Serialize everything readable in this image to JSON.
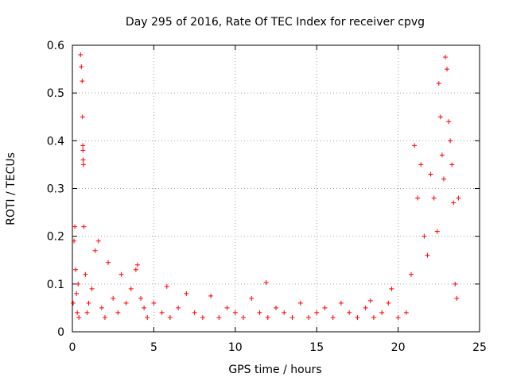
{
  "chart_data": {
    "type": "scatter",
    "title": "Day 295 of 2016, Rate Of TEC Index for receiver cpvg",
    "xlabel": "GPS time / hours",
    "ylabel": "ROTI / TECUs",
    "xlim": [
      0,
      25
    ],
    "ylim": [
      0,
      0.6
    ],
    "xticks": [
      "0",
      "5",
      "10",
      "15",
      "20",
      "25"
    ],
    "yticks": [
      "0",
      "0.1",
      "0.2",
      "0.3",
      "0.4",
      "0.5",
      "0.6"
    ],
    "grid": true,
    "legend": "none",
    "series": [
      {
        "name": "ROTI",
        "marker": "plus",
        "color": "#ff0000",
        "x": [
          0.05,
          0.1,
          0.15,
          0.2,
          0.25,
          0.3,
          0.35,
          0.4,
          0.5,
          0.55,
          0.6,
          0.62,
          0.64,
          0.65,
          0.66,
          0.68,
          0.7,
          0.8,
          0.9,
          1.0,
          1.2,
          1.4,
          1.6,
          1.8,
          2.0,
          2.2,
          2.5,
          2.8,
          3.0,
          3.3,
          3.6,
          3.9,
          4.0,
          4.2,
          4.4,
          4.6,
          5.0,
          5.5,
          5.8,
          6.0,
          6.5,
          7.0,
          7.5,
          8.0,
          8.5,
          9.0,
          9.5,
          10.0,
          10.5,
          11.0,
          11.5,
          11.9,
          12.0,
          12.5,
          13.0,
          13.5,
          14.0,
          14.5,
          15.0,
          15.5,
          16.0,
          16.5,
          17.0,
          17.5,
          18.0,
          18.3,
          18.5,
          19.0,
          19.4,
          19.6,
          20.0,
          20.5,
          20.8,
          21.0,
          21.2,
          21.4,
          21.6,
          21.8,
          22.0,
          22.2,
          22.4,
          22.5,
          22.6,
          22.7,
          22.8,
          22.9,
          23.0,
          23.1,
          23.2,
          23.3,
          23.4,
          23.5,
          23.6,
          23.7
        ],
        "y": [
          0.06,
          0.19,
          0.22,
          0.13,
          0.08,
          0.04,
          0.1,
          0.03,
          0.58,
          0.555,
          0.525,
          0.45,
          0.39,
          0.38,
          0.36,
          0.35,
          0.22,
          0.12,
          0.04,
          0.06,
          0.09,
          0.17,
          0.19,
          0.05,
          0.03,
          0.145,
          0.07,
          0.04,
          0.12,
          0.06,
          0.09,
          0.13,
          0.14,
          0.07,
          0.05,
          0.03,
          0.06,
          0.04,
          0.095,
          0.03,
          0.05,
          0.08,
          0.04,
          0.03,
          0.075,
          0.03,
          0.05,
          0.04,
          0.03,
          0.07,
          0.04,
          0.103,
          0.03,
          0.05,
          0.04,
          0.03,
          0.06,
          0.03,
          0.04,
          0.05,
          0.03,
          0.06,
          0.04,
          0.03,
          0.05,
          0.065,
          0.03,
          0.04,
          0.06,
          0.09,
          0.03,
          0.04,
          0.12,
          0.39,
          0.28,
          0.35,
          0.2,
          0.16,
          0.33,
          0.28,
          0.21,
          0.52,
          0.45,
          0.37,
          0.32,
          0.575,
          0.55,
          0.44,
          0.4,
          0.35,
          0.27,
          0.1,
          0.07,
          0.28
        ]
      }
    ]
  }
}
